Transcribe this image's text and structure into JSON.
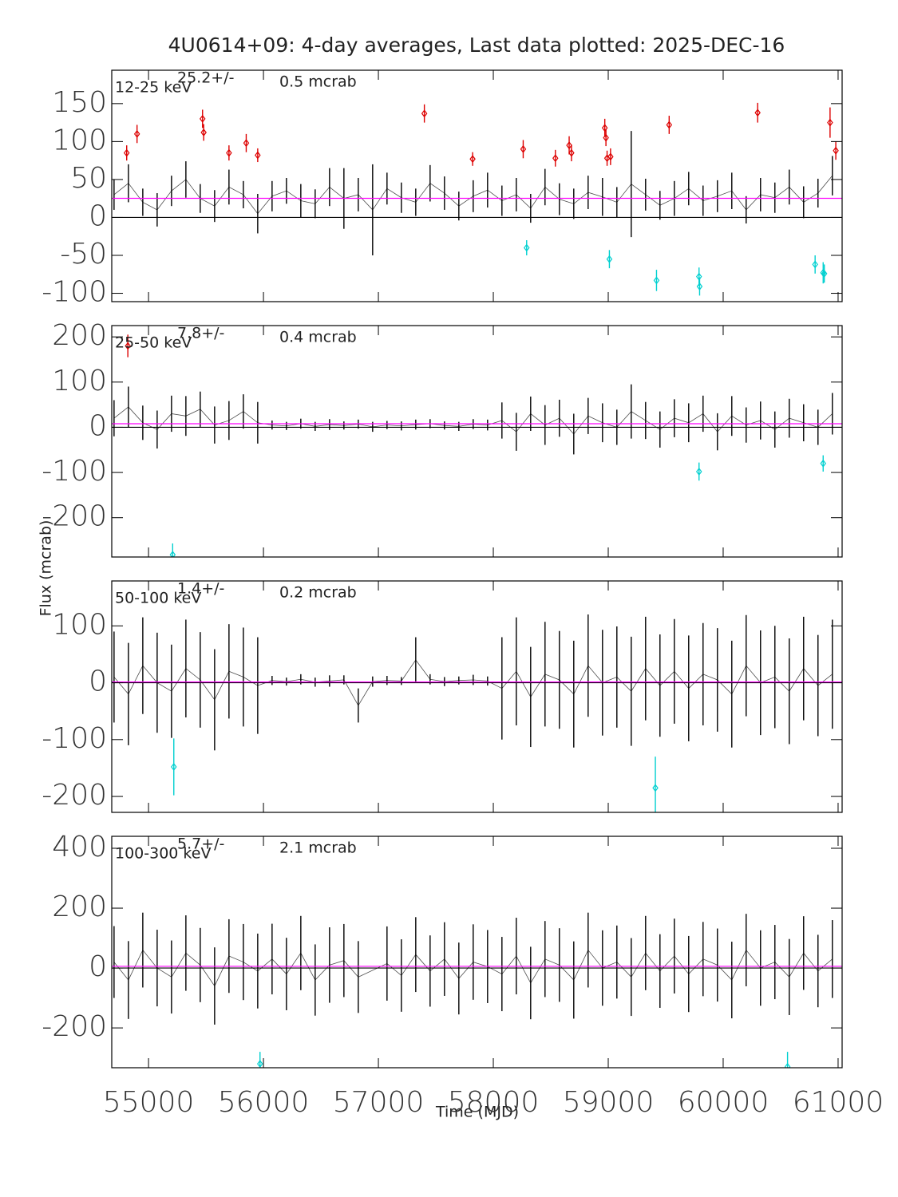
{
  "title": "4U0614+09:  4-day averages,  Last data plotted: 2025-DEC-16",
  "x_label": "Time (MJD)",
  "y_label": "Flux (mcrab)",
  "chart_data": [
    {
      "type": "errorbar",
      "band_label": "12-25 keV",
      "mean": 25.2,
      "mean_text": "25.2+/-",
      "error_text": "0.5 mcrab",
      "mean_color": "#ff00ff",
      "xlim": [
        54680,
        61035
      ],
      "xticks": [
        55000,
        56000,
        57000,
        58000,
        59000,
        60000,
        61000
      ],
      "ylim": [
        -111,
        194
      ],
      "yticks": [
        -100,
        -50,
        0,
        50,
        100,
        150
      ],
      "series": [
        {
          "color": "#000000",
          "marker": "none",
          "x": [
            54700,
            54825,
            54950,
            55075,
            55200,
            55325,
            55450,
            55575,
            55700,
            55825,
            55950,
            56075,
            56200,
            56325,
            56450,
            56575,
            56700,
            56825,
            56950,
            57075,
            57200,
            57325,
            57450,
            57575,
            57700,
            57825,
            57950,
            58075,
            58200,
            58325,
            58450,
            58575,
            58700,
            58825,
            58950,
            59075,
            59200,
            59325,
            59450,
            59575,
            59700,
            59825,
            59950,
            60075,
            60200,
            60325,
            60450,
            60575,
            60700,
            60825,
            60950
          ],
          "values": [
            30,
            45,
            20,
            10,
            35,
            50,
            25,
            15,
            40,
            30,
            5,
            28,
            35,
            22,
            18,
            40,
            25,
            30,
            10,
            38,
            26,
            20,
            45,
            32,
            15,
            28,
            36,
            22,
            30,
            12,
            40,
            24,
            18,
            33,
            27,
            20,
            44,
            30,
            16,
            25,
            38,
            22,
            28,
            35,
            10,
            30,
            26,
            40,
            20,
            32,
            55
          ],
          "errors": [
            20,
            25,
            18,
            22,
            20,
            24,
            19,
            21,
            23,
            18,
            26,
            20,
            17,
            22,
            19,
            25,
            40,
            22,
            60,
            21,
            20,
            18,
            24,
            22,
            19,
            21,
            23,
            20,
            22,
            19,
            24,
            21,
            20,
            22,
            25,
            20,
            70,
            21,
            19,
            23,
            22,
            20,
            21,
            24,
            18,
            22,
            20,
            23,
            21,
            19,
            26
          ]
        },
        {
          "color": "#dd0000",
          "marker": "diamond",
          "x": [
            54810,
            54900,
            55470,
            55480,
            55700,
            55850,
            55950,
            57400,
            57820,
            58260,
            58540,
            58660,
            58680,
            58970,
            58980,
            58990,
            59020,
            59530,
            60300,
            60930,
            60980
          ],
          "values": [
            85,
            110,
            130,
            112,
            85,
            98,
            82,
            137,
            77,
            90,
            78,
            95,
            85,
            118,
            105,
            78,
            80,
            122,
            138,
            125,
            88
          ],
          "errors": [
            10,
            12,
            12,
            11,
            10,
            12,
            9,
            12,
            9,
            12,
            11,
            12,
            11,
            12,
            11,
            10,
            11,
            12,
            13,
            20,
            12
          ]
        },
        {
          "color": "#00d0d0",
          "marker": "diamond",
          "x": [
            58290,
            59010,
            59420,
            59790,
            59795,
            60800,
            60870,
            60880
          ],
          "values": [
            -40,
            -55,
            -83,
            -78,
            -91,
            -62,
            -73,
            -74
          ],
          "errors": [
            10,
            12,
            14,
            12,
            12,
            12,
            14,
            12
          ]
        }
      ]
    },
    {
      "type": "errorbar",
      "band_label": "25-50 keV",
      "mean": 7.8,
      "mean_text": "7.8+/-",
      "error_text": "0.4 mcrab",
      "mean_color": "#ff00ff",
      "xlim": [
        54680,
        61035
      ],
      "xticks": [
        55000,
        56000,
        57000,
        58000,
        59000,
        60000,
        61000
      ],
      "ylim": [
        -287,
        225
      ],
      "yticks": [
        -200,
        -100,
        0,
        100,
        200
      ],
      "series": [
        {
          "color": "#000000",
          "marker": "none",
          "x": [
            54700,
            54825,
            54950,
            55075,
            55200,
            55325,
            55450,
            55575,
            55700,
            55825,
            55950,
            56075,
            56200,
            56325,
            56450,
            56575,
            56700,
            56825,
            56950,
            57075,
            57200,
            57325,
            57450,
            57575,
            57700,
            57825,
            57950,
            58075,
            58200,
            58325,
            58450,
            58575,
            58700,
            58825,
            58950,
            59075,
            59200,
            59325,
            59450,
            59575,
            59700,
            59825,
            59950,
            60075,
            60200,
            60325,
            60450,
            60575,
            60700,
            60825,
            60950
          ],
          "values": [
            20,
            45,
            10,
            -5,
            30,
            25,
            40,
            5,
            15,
            35,
            10,
            5,
            3,
            8,
            2,
            6,
            4,
            7,
            1,
            5,
            3,
            6,
            8,
            4,
            2,
            7,
            5,
            15,
            -10,
            30,
            5,
            20,
            -15,
            25,
            10,
            0,
            35,
            15,
            -5,
            20,
            10,
            30,
            -10,
            25,
            5,
            15,
            -5,
            20,
            10,
            0,
            30
          ],
          "errors": [
            40,
            45,
            38,
            42,
            40,
            44,
            39,
            41,
            43,
            38,
            46,
            10,
            9,
            11,
            10,
            12,
            9,
            10,
            11,
            9,
            10,
            11,
            10,
            9,
            10,
            11,
            12,
            40,
            42,
            38,
            44,
            41,
            45,
            40,
            43,
            39,
            60,
            41,
            40,
            42,
            43,
            40,
            41,
            44,
            39,
            42,
            40,
            43,
            41,
            39,
            46
          ]
        },
        {
          "color": "#dd0000",
          "marker": "diamond",
          "x": [
            54820
          ],
          "values": [
            180
          ],
          "errors": [
            25
          ]
        },
        {
          "color": "#00d0d0",
          "marker": "diamond",
          "x": [
            55210,
            59790,
            60870
          ],
          "values": [
            -282,
            -98,
            -80
          ],
          "errors": [
            25,
            20,
            18
          ]
        }
      ]
    },
    {
      "type": "errorbar",
      "band_label": "50-100 keV",
      "mean": 1.4,
      "mean_text": "1.4+/-",
      "error_text": "0.2 mcrab",
      "mean_color": "#ff00ff",
      "xlim": [
        54680,
        61035
      ],
      "xticks": [
        55000,
        56000,
        57000,
        58000,
        59000,
        60000,
        61000
      ],
      "ylim": [
        -228,
        179
      ],
      "yticks": [
        -200,
        -100,
        0,
        100
      ],
      "series": [
        {
          "color": "#000000",
          "marker": "none",
          "x": [
            54700,
            54825,
            54950,
            55075,
            55200,
            55325,
            55450,
            55575,
            55700,
            55825,
            55950,
            56075,
            56200,
            56325,
            56450,
            56575,
            56700,
            56825,
            56950,
            57075,
            57200,
            57325,
            57450,
            57575,
            57700,
            57825,
            57950,
            58075,
            58200,
            58325,
            58450,
            58575,
            58700,
            58825,
            58950,
            59075,
            59200,
            59325,
            59450,
            59575,
            59700,
            59825,
            59950,
            60075,
            60200,
            60325,
            60450,
            60575,
            60700,
            60825,
            60950
          ],
          "values": [
            10,
            -20,
            30,
            0,
            -15,
            25,
            5,
            -30,
            20,
            10,
            -5,
            4,
            2,
            6,
            1,
            3,
            5,
            -40,
            2,
            4,
            3,
            40,
            6,
            2,
            4,
            5,
            3,
            -10,
            20,
            -25,
            15,
            5,
            -20,
            30,
            0,
            10,
            -15,
            25,
            -5,
            20,
            -10,
            15,
            5,
            -20,
            30,
            0,
            10,
            -15,
            25,
            -5,
            15
          ],
          "errors": [
            80,
            90,
            85,
            88,
            82,
            86,
            84,
            89,
            83,
            87,
            85,
            8,
            7,
            9,
            8,
            10,
            8,
            30,
            9,
            8,
            7,
            40,
            9,
            8,
            7,
            9,
            8,
            90,
            95,
            88,
            92,
            86,
            94,
            90,
            93,
            89,
            96,
            91,
            90,
            92,
            93,
            90,
            91,
            94,
            89,
            92,
            90,
            93,
            91,
            89,
            96
          ]
        },
        {
          "color": "#00d0d0",
          "marker": "diamond",
          "x": [
            55220,
            59410
          ],
          "values": [
            -148,
            -185
          ],
          "errors": [
            50,
            55
          ]
        }
      ]
    },
    {
      "type": "errorbar",
      "band_label": "100-300 keV",
      "mean": 5.7,
      "mean_text": "5.7+/-",
      "error_text": "2.1 mcrab",
      "mean_color": "#ff00ff",
      "xlim": [
        54680,
        61035
      ],
      "xticks": [
        55000,
        56000,
        57000,
        58000,
        59000,
        60000,
        61000
      ],
      "ylim": [
        -333,
        440
      ],
      "yticks": [
        -200,
        0,
        200,
        400
      ],
      "series": [
        {
          "color": "#000000",
          "marker": "none",
          "x": [
            54700,
            54825,
            54950,
            55075,
            55200,
            55325,
            55450,
            55575,
            55700,
            55825,
            55950,
            56075,
            56200,
            56325,
            56450,
            56575,
            56700,
            56825,
            56950,
            57075,
            57200,
            57325,
            57450,
            57575,
            57700,
            57825,
            57950,
            58075,
            58200,
            58325,
            58450,
            58575,
            58700,
            58825,
            58950,
            59075,
            59200,
            59325,
            59450,
            59575,
            59700,
            59825,
            59950,
            60075,
            60200,
            60325,
            60450,
            60575,
            60700,
            60825,
            60950
          ],
          "values": [
            20,
            -40,
            60,
            0,
            -30,
            50,
            10,
            -60,
            40,
            20,
            -10,
            30,
            -20,
            50,
            -40,
            10,
            25,
            -30,
            null,
            15,
            -25,
            45,
            -10,
            30,
            -35,
            20,
            5,
            -20,
            40,
            -50,
            30,
            10,
            -40,
            60,
            0,
            20,
            -30,
            50,
            -10,
            40,
            -20,
            30,
            10,
            -40,
            60,
            0,
            20,
            -30,
            50,
            -10,
            30
          ],
          "errors": [
            120,
            130,
            125,
            128,
            122,
            126,
            124,
            129,
            123,
            127,
            125,
            118,
            121,
            124,
            119,
            126,
            122,
            120,
            null,
            124,
            121,
            125,
            119,
            123,
            120,
            126,
            122,
            124,
            128,
            121,
            127,
            123,
            129,
            125,
            126,
            122,
            130,
            124,
            123,
            125,
            127,
            124,
            122,
            128,
            121,
            126,
            124,
            127,
            123,
            121,
            130
          ]
        },
        {
          "color": "#00d0d0",
          "marker": "diamond",
          "x": [
            55970,
            60560
          ],
          "values": [
            -320,
            -330
          ],
          "errors": [
            40,
            50
          ]
        }
      ]
    }
  ]
}
